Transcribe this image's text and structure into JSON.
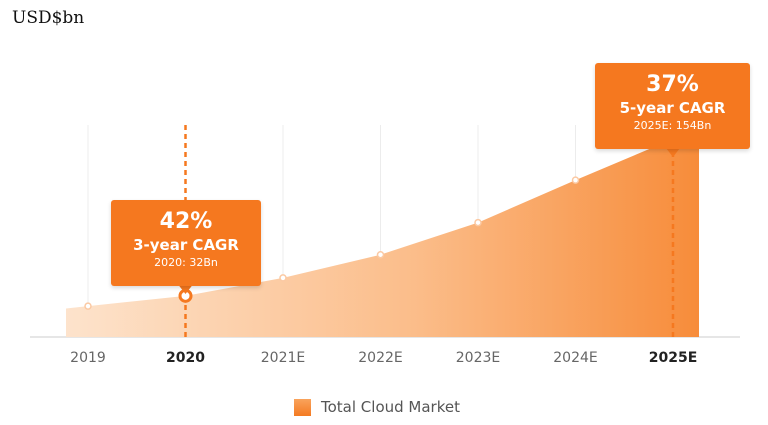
{
  "unit_label": "USD$bn",
  "chart_data": {
    "type": "area",
    "categories": [
      "2019",
      "2020",
      "2021E",
      "2022E",
      "2023E",
      "2024E",
      "2025E"
    ],
    "highlight_categories": [
      "2020",
      "2025E"
    ],
    "series": [
      {
        "name": "Total Cloud Market",
        "values": [
          24,
          32,
          46,
          64,
          89,
          122,
          154
        ]
      }
    ],
    "ylim": [
      0,
      175
    ],
    "grid": "vertical",
    "legend_position": "bottom-center",
    "color": "#f5781f",
    "annotations": [
      {
        "category": "2020",
        "rate": "42%",
        "label": "3-year CAGR",
        "detail": "2020: 32Bn"
      },
      {
        "category": "2025E",
        "rate": "37%",
        "label": "5-year CAGR",
        "detail": "2025E: 154Bn"
      }
    ]
  }
}
